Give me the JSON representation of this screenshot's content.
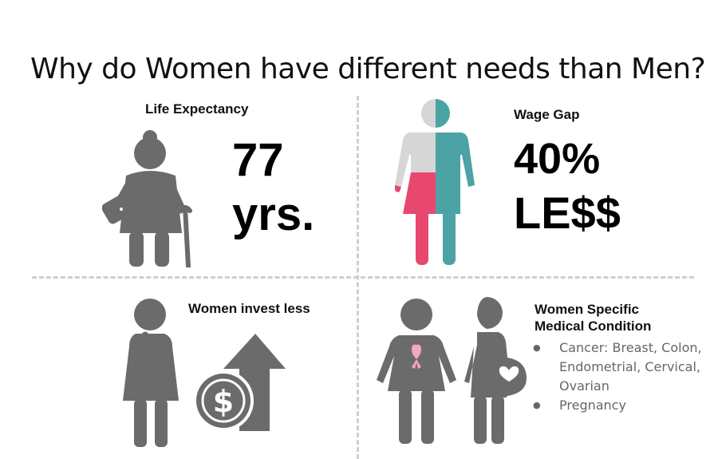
{
  "title": "Why do Women have different needs than Men?",
  "life": {
    "label": "Life Expectancy",
    "value": "77",
    "unit": "yrs."
  },
  "wage": {
    "label": "Wage Gap",
    "value": "40%",
    "unit": "LE$$"
  },
  "invest": {
    "label": "Women invest less"
  },
  "medical": {
    "label_line1": "Women Specific",
    "label_line2": "Medical Condition",
    "items": [
      "Cancer: Breast, Colon, Endometrial, Cervical, Ovarian",
      "Pregnancy"
    ]
  },
  "colors": {
    "gray": "#6b6b6b",
    "pink": "#e8486e",
    "teal": "#4ba3a6",
    "light_gray": "#d6d6d6"
  },
  "icons": {
    "life": "elderly-woman-with-cane-icon",
    "wage": "woman-man-split-figure-icon",
    "invest": "thinking-woman-icon",
    "invest_arrow": "dollar-up-arrow-icon",
    "medical_woman": "woman-with-pink-ribbon-icon",
    "medical_pregnant": "pregnant-woman-icon"
  }
}
